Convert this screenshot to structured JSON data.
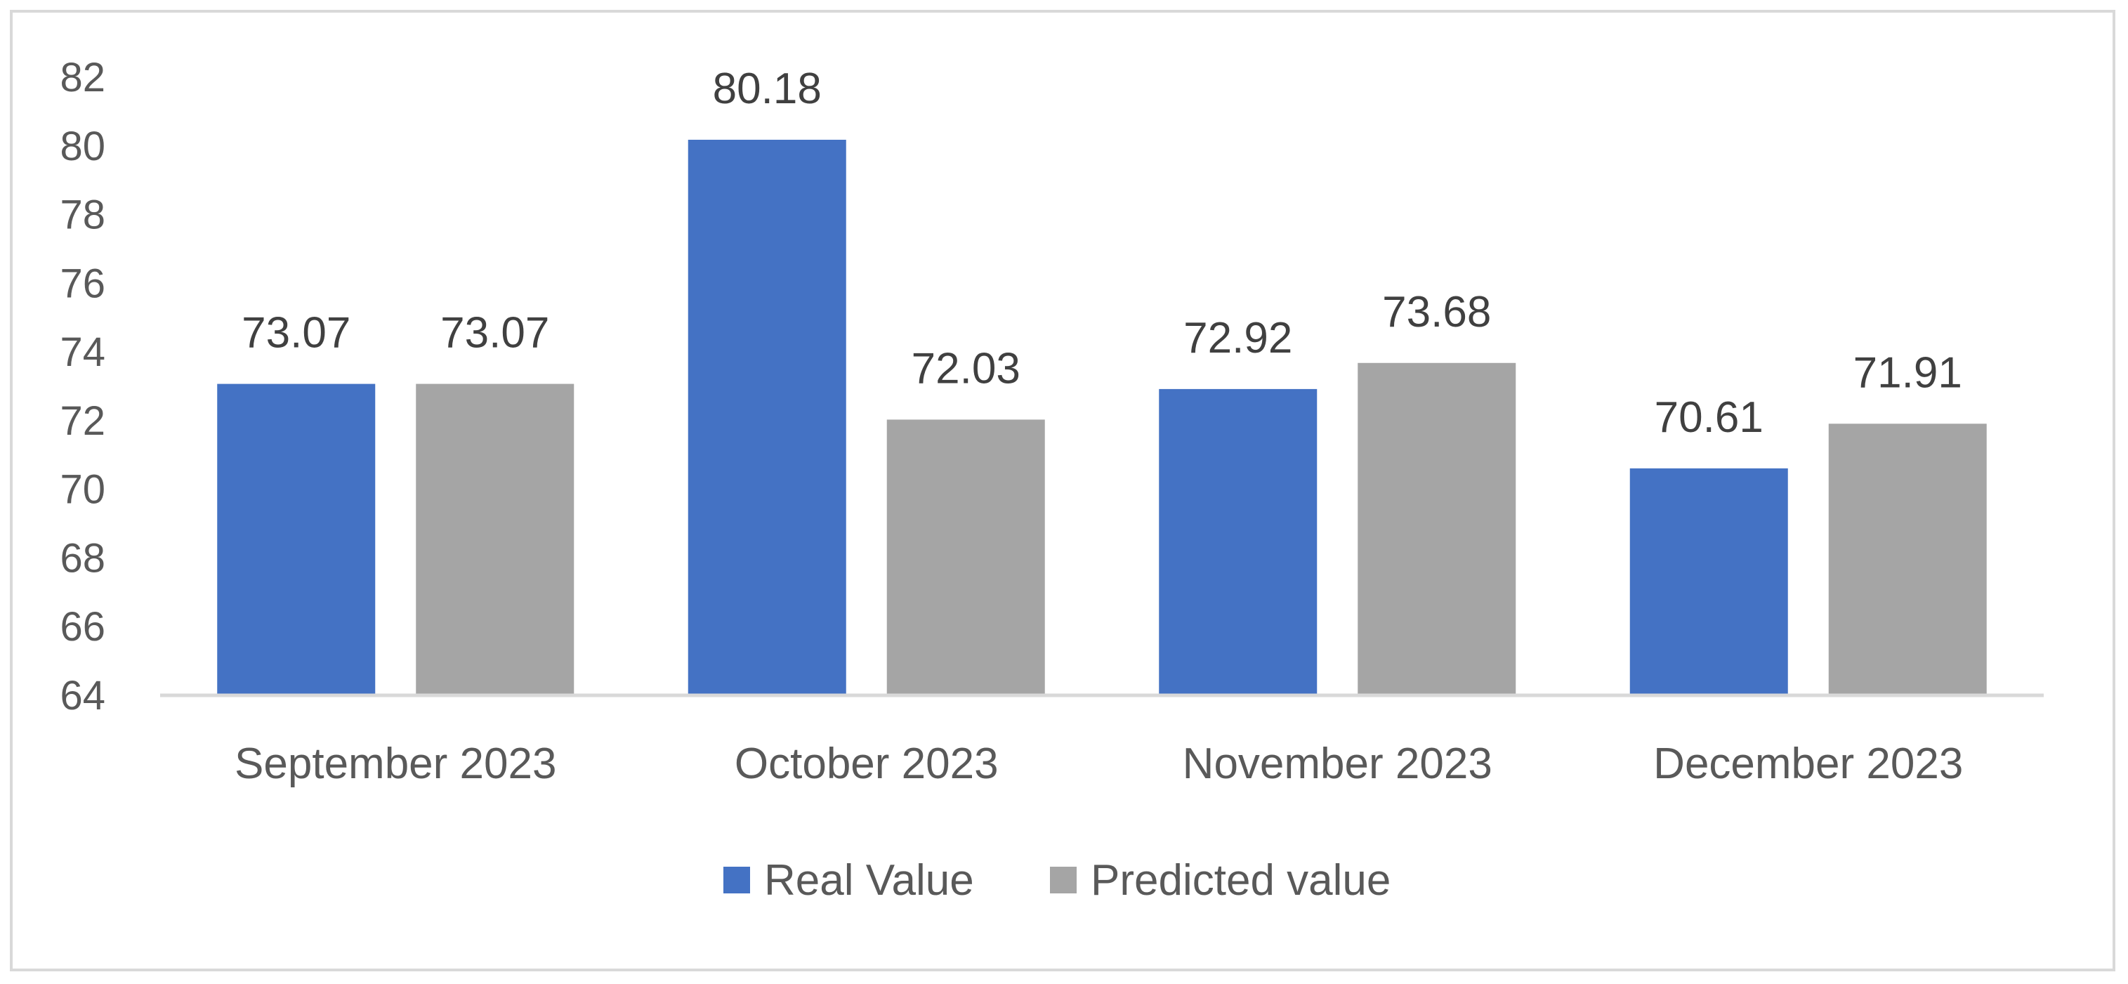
{
  "chart_data": {
    "type": "bar",
    "categories": [
      "September 2023",
      "October 2023",
      "November 2023",
      "December 2023"
    ],
    "series": [
      {
        "name": "Real Value",
        "color": "#4472c4",
        "values": [
          73.07,
          80.18,
          72.92,
          70.61
        ],
        "labels": [
          "73.07",
          "80.18",
          "72.92",
          "70.61"
        ]
      },
      {
        "name": "Predicted value",
        "color": "#a5a5a5",
        "values": [
          73.07,
          72.03,
          73.68,
          71.91
        ],
        "labels": [
          "73.07",
          "72.03",
          "73.68",
          "71.91"
        ]
      }
    ],
    "ylim": [
      64,
      82
    ],
    "yticks": [
      "64",
      "66",
      "68",
      "70",
      "72",
      "74",
      "76",
      "78",
      "80",
      "82"
    ],
    "grid": false,
    "legend_position": "bottom",
    "border_color": "#d9d9d9",
    "axis_color": "#d9d9d9"
  }
}
